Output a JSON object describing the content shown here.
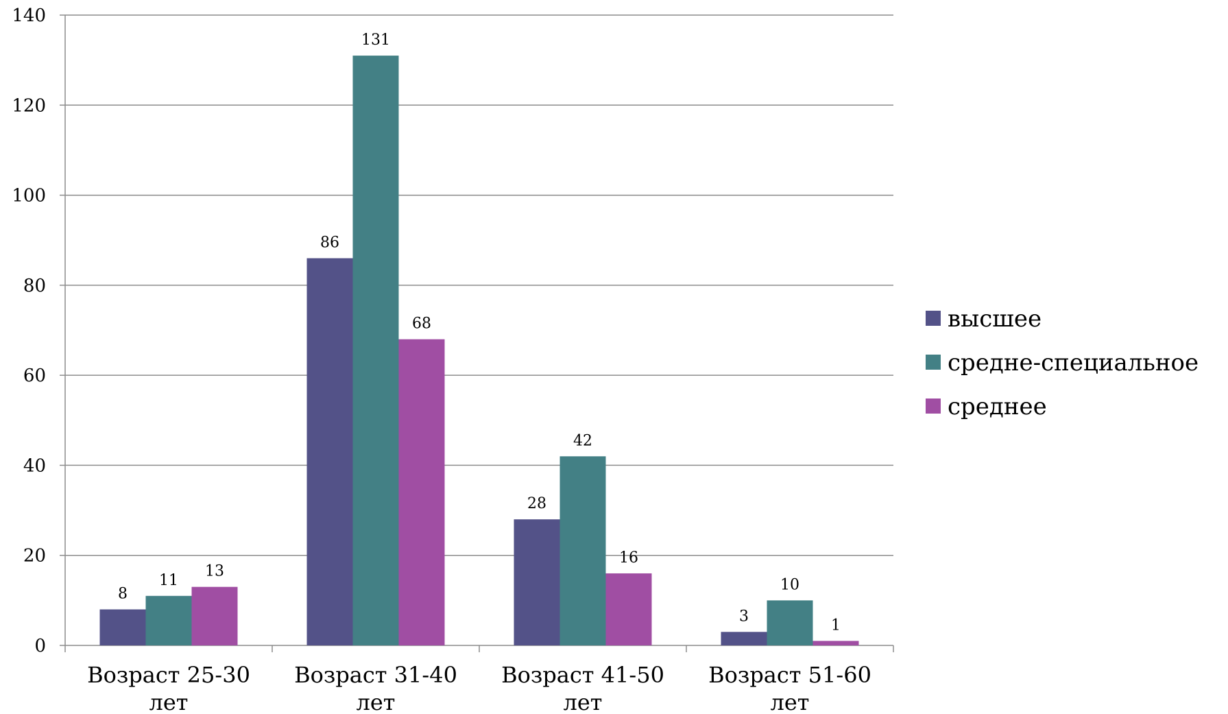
{
  "chart_data": {
    "type": "bar",
    "title": "",
    "xlabel": "",
    "ylabel": "",
    "ylim": [
      0,
      140
    ],
    "ytick_step": 20,
    "grid": true,
    "legend_position": "right",
    "categories": [
      [
        "Возраст 25-30",
        "лет"
      ],
      [
        "Возраст 31-40",
        "лет"
      ],
      [
        "Возраст 41-50",
        "лет"
      ],
      [
        "Возраст 51-60",
        "лет"
      ]
    ],
    "series": [
      {
        "name": "высшее",
        "color": "#535288",
        "values": [
          8,
          86,
          28,
          3
        ]
      },
      {
        "name": "средне-специальное",
        "color": "#438085",
        "values": [
          11,
          131,
          42,
          10
        ]
      },
      {
        "name": "среднее",
        "color": "#a04ea3",
        "values": [
          13,
          68,
          16,
          1
        ]
      }
    ]
  }
}
